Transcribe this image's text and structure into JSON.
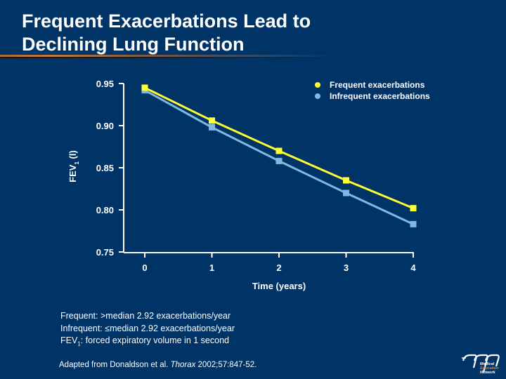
{
  "slide": {
    "title_lines": [
      "Frequent Exacerbations Lead to",
      "Declining Lung Function"
    ],
    "notes": {
      "line1": "Frequent: >median 2.92 exacerbations/year",
      "line2": "Infrequent: ≤median 2.92 exacerbations/year",
      "line3_prefix": "FEV",
      "line3_sub": "1",
      "line3_suffix": ": forced expiratory volume in 1 second"
    },
    "source": {
      "prefix": "Adapted from Donaldson et al. ",
      "journal": "Thorax",
      "suffix": " 2002;57:847-52."
    },
    "logo": {
      "icon": "men-logo-icon",
      "line1": "Medical",
      "line2": "Education",
      "line3": "Network",
      "accent_color": "#e07a2a"
    }
  },
  "chart_data": {
    "type": "line",
    "title": "Frequent Exacerbations Lead to Declining Lung Function",
    "xlabel": "Time (years)",
    "ylabel_main": "FEV",
    "ylabel_sub": "1",
    "ylabel_suffix": " (l)",
    "x": [
      0,
      1,
      2,
      3,
      4
    ],
    "x_tick_labels": [
      "0",
      "1",
      "2",
      "3",
      "4"
    ],
    "y_ticks": [
      0.95,
      0.9,
      0.85,
      0.8,
      0.75
    ],
    "y_tick_labels": [
      "0.95",
      "0.90",
      "0.85",
      "0.80",
      "0.75"
    ],
    "ylim": [
      0.75,
      0.95
    ],
    "xlim": [
      -0.3,
      4
    ],
    "grid": false,
    "legend_position": "top-right",
    "series": [
      {
        "name": "Frequent exacerbations",
        "color": "#ffff33",
        "marker": "square",
        "values": [
          0.945,
          0.906,
          0.87,
          0.835,
          0.802
        ]
      },
      {
        "name": "Infrequent exacerbations",
        "color": "#7fb8e0",
        "marker": "square",
        "values": [
          0.942,
          0.898,
          0.858,
          0.82,
          0.783
        ]
      }
    ]
  }
}
